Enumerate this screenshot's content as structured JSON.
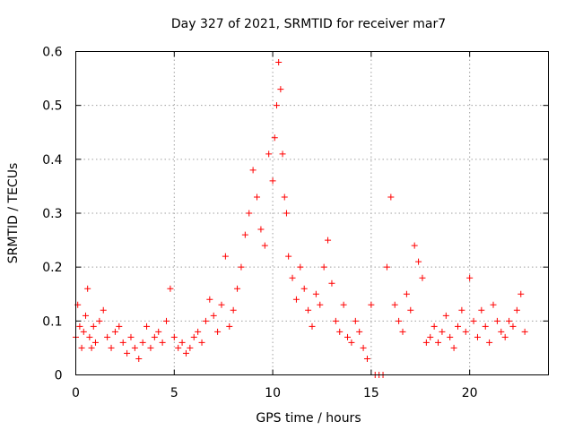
{
  "chart_data": {
    "type": "scatter",
    "title": "Day 327 of 2021, SRMTID for receiver mar7",
    "xlabel": "GPS time / hours",
    "ylabel": "SRMTID / TECUs",
    "xlim": [
      0,
      24
    ],
    "ylim": [
      0,
      0.6
    ],
    "xticks": [
      0,
      5,
      10,
      15,
      20
    ],
    "xtick_labels": [
      "0",
      "5",
      "10",
      "15",
      "20"
    ],
    "yticks": [
      0,
      0.1,
      0.2,
      0.3,
      0.4,
      0.5,
      0.6
    ],
    "ytick_labels": [
      "0",
      "0.1",
      "0.2",
      "0.3",
      "0.4",
      "0.5",
      "0.6"
    ],
    "grid": true,
    "marker": "+",
    "color": "#ff0000",
    "series": [
      {
        "name": "SRMTID",
        "x": [
          0.0,
          0.1,
          0.2,
          0.3,
          0.4,
          0.5,
          0.6,
          0.7,
          0.8,
          0.9,
          1.0,
          1.2,
          1.4,
          1.6,
          1.8,
          2.0,
          2.2,
          2.4,
          2.6,
          2.8,
          3.0,
          3.2,
          3.4,
          3.6,
          3.8,
          4.0,
          4.2,
          4.4,
          4.6,
          4.8,
          5.0,
          5.2,
          5.4,
          5.6,
          5.8,
          6.0,
          6.2,
          6.4,
          6.6,
          6.8,
          7.0,
          7.2,
          7.4,
          7.6,
          7.8,
          8.0,
          8.2,
          8.4,
          8.6,
          8.8,
          9.0,
          9.2,
          9.4,
          9.6,
          9.8,
          10.0,
          10.1,
          10.2,
          10.3,
          10.4,
          10.5,
          10.6,
          10.7,
          10.8,
          11.0,
          11.2,
          11.4,
          11.6,
          11.8,
          12.0,
          12.2,
          12.4,
          12.6,
          12.8,
          13.0,
          13.2,
          13.4,
          13.6,
          13.8,
          14.0,
          14.2,
          14.4,
          14.6,
          14.8,
          15.0,
          15.2,
          15.4,
          15.6,
          15.8,
          16.0,
          16.2,
          16.4,
          16.6,
          16.8,
          17.0,
          17.2,
          17.4,
          17.6,
          17.8,
          18.0,
          18.2,
          18.4,
          18.6,
          18.8,
          19.0,
          19.2,
          19.4,
          19.6,
          19.8,
          20.0,
          20.2,
          20.4,
          20.6,
          20.8,
          21.0,
          21.2,
          21.4,
          21.6,
          21.8,
          22.0,
          22.2,
          22.4,
          22.6,
          22.8
        ],
        "y": [
          0.07,
          0.13,
          0.09,
          0.05,
          0.08,
          0.11,
          0.16,
          0.07,
          0.05,
          0.09,
          0.06,
          0.1,
          0.12,
          0.07,
          0.05,
          0.08,
          0.09,
          0.06,
          0.04,
          0.07,
          0.05,
          0.03,
          0.06,
          0.09,
          0.05,
          0.07,
          0.08,
          0.06,
          0.1,
          0.16,
          0.07,
          0.05,
          0.06,
          0.04,
          0.05,
          0.07,
          0.08,
          0.06,
          0.1,
          0.14,
          0.11,
          0.08,
          0.13,
          0.22,
          0.09,
          0.12,
          0.16,
          0.2,
          0.26,
          0.3,
          0.38,
          0.33,
          0.27,
          0.24,
          0.41,
          0.36,
          0.44,
          0.5,
          0.58,
          0.53,
          0.41,
          0.33,
          0.3,
          0.22,
          0.18,
          0.14,
          0.2,
          0.16,
          0.12,
          0.09,
          0.15,
          0.13,
          0.2,
          0.25,
          0.17,
          0.1,
          0.08,
          0.13,
          0.07,
          0.06,
          0.1,
          0.08,
          0.05,
          0.03,
          0.13,
          0.0,
          0.0,
          0.0,
          0.2,
          0.33,
          0.13,
          0.1,
          0.08,
          0.15,
          0.12,
          0.24,
          0.21,
          0.18,
          0.06,
          0.07,
          0.09,
          0.06,
          0.08,
          0.11,
          0.07,
          0.05,
          0.09,
          0.12,
          0.08,
          0.18,
          0.1,
          0.07,
          0.12,
          0.09,
          0.06,
          0.13,
          0.1,
          0.08,
          0.07,
          0.1,
          0.09,
          0.12,
          0.15,
          0.08
        ]
      }
    ]
  }
}
